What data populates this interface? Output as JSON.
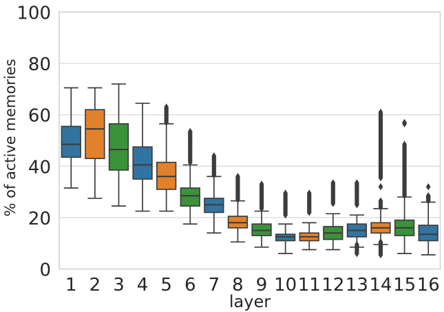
{
  "chart_data": {
    "type": "box",
    "title": "",
    "xlabel": "layer",
    "ylabel": "% of active memories",
    "ylim": [
      0,
      100
    ],
    "yticks": [
      0,
      20,
      40,
      60,
      80,
      100
    ],
    "grid": true,
    "legend": null,
    "categories": [
      "1",
      "2",
      "3",
      "4",
      "5",
      "6",
      "7",
      "8",
      "9",
      "10",
      "11",
      "12",
      "13",
      "14",
      "15",
      "16"
    ],
    "colors": {
      "palette_cycle": [
        "#3274a1",
        "#e1812c",
        "#3a923a"
      ],
      "edge": "#3c3c3c",
      "flier": "#3c3c3c",
      "grid": "#dcdcdc",
      "spine": "#d0d0d0",
      "text": "#262626",
      "background": "#ffffff"
    },
    "boxes": [
      {
        "layer": "1",
        "color": "#3274a1",
        "whisker_low": 31.5,
        "q1": 43.5,
        "median": 48.5,
        "q3": 55.5,
        "whisker_high": 70.5,
        "fliers_high": [],
        "fliers_low": []
      },
      {
        "layer": "2",
        "color": "#e1812c",
        "whisker_low": 27.5,
        "q1": 43,
        "median": 54.5,
        "q3": 62,
        "whisker_high": 70.5,
        "fliers_high": [],
        "fliers_low": []
      },
      {
        "layer": "3",
        "color": "#3a923a",
        "whisker_low": 24.5,
        "q1": 38.5,
        "median": 46.5,
        "q3": 56.5,
        "whisker_high": 72,
        "fliers_high": [],
        "fliers_low": []
      },
      {
        "layer": "4",
        "color": "#3274a1",
        "whisker_low": 22.5,
        "q1": 35,
        "median": 40.5,
        "q3": 47.5,
        "whisker_high": 64.5,
        "fliers_high": [],
        "fliers_low": []
      },
      {
        "layer": "5",
        "color": "#e1812c",
        "whisker_low": 22.5,
        "q1": 31,
        "median": 36,
        "q3": 41.5,
        "whisker_high": 56.5,
        "fliers_high": [
          {
            "from": 57,
            "to": 63,
            "count": 12
          }
        ],
        "fliers_low": []
      },
      {
        "layer": "6",
        "color": "#3a923a",
        "whisker_low": 17.5,
        "q1": 24.5,
        "median": 28.5,
        "q3": 31.5,
        "whisker_high": 40.5,
        "fliers_high": [
          {
            "from": 41.5,
            "to": 53.5,
            "count": 24
          }
        ],
        "fliers_low": []
      },
      {
        "layer": "7",
        "color": "#3274a1",
        "whisker_low": 14,
        "q1": 22,
        "median": 25,
        "q3": 27.5,
        "whisker_high": 36,
        "fliers_high": [
          {
            "from": 36.5,
            "to": 44,
            "count": 16
          }
        ],
        "fliers_low": []
      },
      {
        "layer": "8",
        "color": "#e1812c",
        "whisker_low": 10.5,
        "q1": 16,
        "median": 18,
        "q3": 20.5,
        "whisker_high": 26.5,
        "fliers_high": [
          {
            "from": 27,
            "to": 36,
            "count": 18
          }
        ],
        "fliers_low": []
      },
      {
        "layer": "9",
        "color": "#3a923a",
        "whisker_low": 8.5,
        "q1": 13,
        "median": 15,
        "q3": 17.5,
        "whisker_high": 22.5,
        "fliers_high": [
          {
            "from": 23.5,
            "to": 33,
            "count": 19
          }
        ],
        "fliers_low": []
      },
      {
        "layer": "10",
        "color": "#3274a1",
        "whisker_low": 6,
        "q1": 11,
        "median": 12.5,
        "q3": 13.5,
        "whisker_high": 17.5,
        "fliers_high": [
          {
            "from": 21,
            "to": 29.5,
            "count": 17
          }
        ],
        "fliers_low": []
      },
      {
        "layer": "11",
        "color": "#e1812c",
        "whisker_low": 7.5,
        "q1": 11,
        "median": 12.5,
        "q3": 14,
        "whisker_high": 18,
        "fliers_high": [
          {
            "from": 22,
            "to": 29.5,
            "count": 15
          }
        ],
        "fliers_low": []
      },
      {
        "layer": "12",
        "color": "#3a923a",
        "whisker_low": 7.5,
        "q1": 11.5,
        "median": 14,
        "q3": 16.5,
        "whisker_high": 21.5,
        "fliers_high": [
          {
            "from": 25.5,
            "to": 33.5,
            "count": 16
          }
        ],
        "fliers_low": []
      },
      {
        "layer": "13",
        "color": "#3274a1",
        "whisker_low": 8.5,
        "q1": 12.5,
        "median": 15,
        "q3": 17.5,
        "whisker_high": 21,
        "fliers_high": [
          {
            "from": 25,
            "to": 33.5,
            "count": 17
          }
        ],
        "fliers_low": [
          {
            "from": 6,
            "to": 9.5,
            "count": 7
          }
        ]
      },
      {
        "layer": "14",
        "color": "#e1812c",
        "whisker_low": 9.5,
        "q1": 14,
        "median": 16,
        "q3": 18,
        "whisker_high": 23.5,
        "fliers_high": [
          {
            "from": 24,
            "to": 26.5,
            "count": 5
          },
          {
            "from": 32,
            "to": 32,
            "count": 1
          },
          {
            "from": 35.5,
            "to": 61,
            "count": 48
          }
        ],
        "fliers_low": [
          {
            "from": 5.5,
            "to": 10.5,
            "count": 10
          }
        ]
      },
      {
        "layer": "15",
        "color": "#3a923a",
        "whisker_low": 6,
        "q1": 13,
        "median": 16,
        "q3": 19,
        "whisker_high": 28,
        "fliers_high": [
          {
            "from": 28.5,
            "to": 48.5,
            "count": 38
          },
          {
            "from": 56.5,
            "to": 57,
            "count": 2
          }
        ],
        "fliers_low": []
      },
      {
        "layer": "16",
        "color": "#3274a1",
        "whisker_low": 5.5,
        "q1": 11,
        "median": 13.5,
        "q3": 17,
        "whisker_high": 26,
        "fliers_high": [
          {
            "from": 26.5,
            "to": 28.5,
            "count": 6
          },
          {
            "from": 32,
            "to": 32,
            "count": 1
          }
        ],
        "fliers_low": []
      }
    ]
  }
}
